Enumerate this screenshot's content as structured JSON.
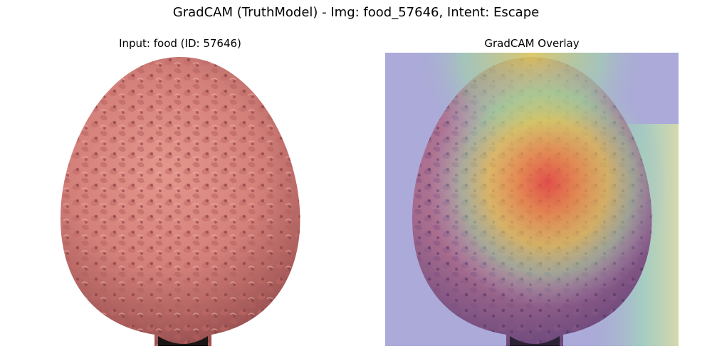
{
  "figure": {
    "suptitle": "GradCAM (TruthModel) - Img: food_57646, Intent: Escape"
  },
  "panels": [
    {
      "title": "Input: food (ID: 57646)",
      "content": "pink pineapple-like fruit on white background"
    },
    {
      "title": "GradCAM Overlay",
      "content": "same fruit with jet-colormap heatmap overlay, hotspot at upper center"
    }
  ],
  "colors": {
    "background": "#ffffff",
    "fruit_base": "#d98a85",
    "fruit_shadow": "#a85a58",
    "overlay_cold": "#abaad8",
    "overlay_hot": "#e8453c"
  }
}
